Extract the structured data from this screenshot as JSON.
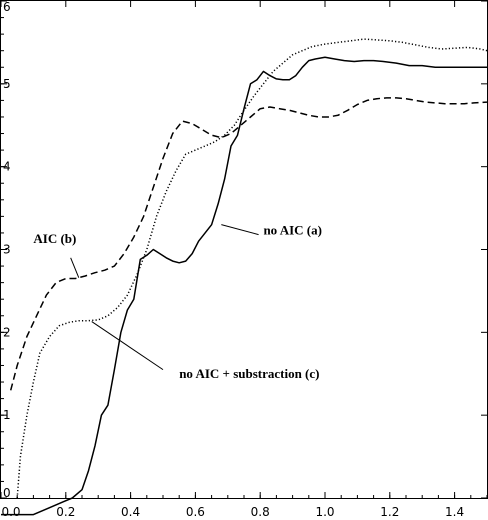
{
  "chart_data": {
    "type": "line",
    "title": "",
    "xlabel": "",
    "ylabel": "",
    "xlim": [
      0.0,
      1.5
    ],
    "ylim": [
      0,
      6
    ],
    "xticks": [
      0.0,
      0.2,
      0.4,
      0.6,
      0.8,
      1.0,
      1.2,
      1.4
    ],
    "xtick_labels": [
      "0.0",
      "0.2",
      "0.4",
      "0.6",
      "0.8",
      "1.0",
      "1.2",
      "1.4"
    ],
    "yticks": [
      0,
      1,
      2,
      3,
      4,
      5,
      6
    ],
    "ytick_labels": [
      "0",
      "1",
      "2",
      "3",
      "4",
      "5",
      "6"
    ],
    "grid": false,
    "legend": "none",
    "series": [
      {
        "key": "a",
        "style": "solid",
        "color": "#000000",
        "x": [
          0.0,
          0.1,
          0.19,
          0.22,
          0.25,
          0.27,
          0.29,
          0.31,
          0.33,
          0.35,
          0.37,
          0.39,
          0.41,
          0.43,
          0.45,
          0.47,
          0.49,
          0.51,
          0.53,
          0.55,
          0.57,
          0.59,
          0.61,
          0.63,
          0.65,
          0.67,
          0.69,
          0.71,
          0.73,
          0.75,
          0.77,
          0.79,
          0.81,
          0.83,
          0.85,
          0.87,
          0.89,
          0.91,
          0.93,
          0.95,
          0.97,
          1.0,
          1.03,
          1.06,
          1.09,
          1.12,
          1.15,
          1.18,
          1.22,
          1.26,
          1.3,
          1.34,
          1.38,
          1.42,
          1.46,
          1.5
        ],
        "y": [
          -0.2,
          -0.2,
          -0.05,
          0.0,
          0.1,
          0.33,
          0.63,
          1.0,
          1.12,
          1.55,
          2.0,
          2.27,
          2.4,
          2.88,
          2.93,
          3.0,
          2.95,
          2.9,
          2.86,
          2.84,
          2.86,
          2.95,
          3.1,
          3.2,
          3.3,
          3.55,
          3.85,
          4.25,
          4.38,
          4.7,
          5.0,
          5.05,
          5.15,
          5.1,
          5.06,
          5.05,
          5.05,
          5.1,
          5.2,
          5.28,
          5.3,
          5.32,
          5.3,
          5.28,
          5.27,
          5.28,
          5.28,
          5.27,
          5.25,
          5.22,
          5.22,
          5.2,
          5.2,
          5.2,
          5.2,
          5.2
        ]
      },
      {
        "key": "b",
        "style": "dashed",
        "color": "#000000",
        "x": [
          0.03,
          0.05,
          0.08,
          0.11,
          0.14,
          0.17,
          0.2,
          0.23,
          0.26,
          0.29,
          0.32,
          0.35,
          0.38,
          0.41,
          0.44,
          0.47,
          0.5,
          0.53,
          0.56,
          0.59,
          0.62,
          0.65,
          0.68,
          0.71,
          0.74,
          0.77,
          0.8,
          0.83,
          0.86,
          0.89,
          0.92,
          0.95,
          0.98,
          1.01,
          1.04,
          1.07,
          1.1,
          1.13,
          1.16,
          1.19,
          1.22,
          1.25,
          1.28,
          1.31,
          1.34,
          1.37,
          1.4,
          1.43,
          1.46,
          1.5
        ],
        "y": [
          1.3,
          1.6,
          1.95,
          2.2,
          2.45,
          2.6,
          2.65,
          2.65,
          2.68,
          2.72,
          2.75,
          2.8,
          2.95,
          3.15,
          3.4,
          3.75,
          4.1,
          4.4,
          4.55,
          4.52,
          4.45,
          4.38,
          4.35,
          4.4,
          4.5,
          4.6,
          4.7,
          4.72,
          4.7,
          4.68,
          4.65,
          4.62,
          4.6,
          4.6,
          4.62,
          4.68,
          4.75,
          4.8,
          4.82,
          4.83,
          4.83,
          4.82,
          4.8,
          4.78,
          4.77,
          4.76,
          4.76,
          4.76,
          4.77,
          4.78
        ]
      },
      {
        "key": "c",
        "style": "dotted",
        "color": "#000000",
        "x": [
          0.05,
          0.06,
          0.08,
          0.1,
          0.12,
          0.15,
          0.18,
          0.21,
          0.24,
          0.27,
          0.3,
          0.33,
          0.36,
          0.39,
          0.42,
          0.45,
          0.48,
          0.51,
          0.54,
          0.57,
          0.6,
          0.63,
          0.66,
          0.69,
          0.72,
          0.75,
          0.78,
          0.81,
          0.84,
          0.87,
          0.9,
          0.93,
          0.96,
          1.0,
          1.04,
          1.08,
          1.12,
          1.16,
          1.2,
          1.24,
          1.28,
          1.32,
          1.36,
          1.4,
          1.44,
          1.48,
          1.5
        ],
        "y": [
          0.0,
          0.5,
          1.0,
          1.4,
          1.75,
          1.95,
          2.08,
          2.12,
          2.14,
          2.14,
          2.15,
          2.2,
          2.3,
          2.45,
          2.7,
          3.0,
          3.4,
          3.7,
          3.95,
          4.15,
          4.2,
          4.25,
          4.3,
          4.38,
          4.5,
          4.68,
          4.85,
          5.0,
          5.15,
          5.25,
          5.35,
          5.4,
          5.45,
          5.48,
          5.5,
          5.52,
          5.54,
          5.53,
          5.52,
          5.5,
          5.47,
          5.44,
          5.42,
          5.43,
          5.44,
          5.42,
          5.4
        ]
      }
    ],
    "annotations": [
      {
        "text": "AIC (b)",
        "series": "b",
        "label_x": 0.1,
        "label_y": 3.08,
        "arrow_to_x": 0.24,
        "arrow_to_y": 2.66,
        "arrow_from_x": 0.215,
        "arrow_from_y": 2.9
      },
      {
        "text": "no AIC (a)",
        "series": "a",
        "label_x": 0.81,
        "label_y": 3.18,
        "arrow_to_x": 0.68,
        "arrow_to_y": 3.3,
        "arrow_from_x": 0.795,
        "arrow_from_y": 3.18
      },
      {
        "text": "no AIC + substraction (c)",
        "series": "c",
        "label_x": 0.55,
        "label_y": 1.45,
        "arrow_to_x": 0.28,
        "arrow_to_y": 2.13,
        "arrow_from_x": 0.5,
        "arrow_from_y": 1.55
      }
    ]
  }
}
